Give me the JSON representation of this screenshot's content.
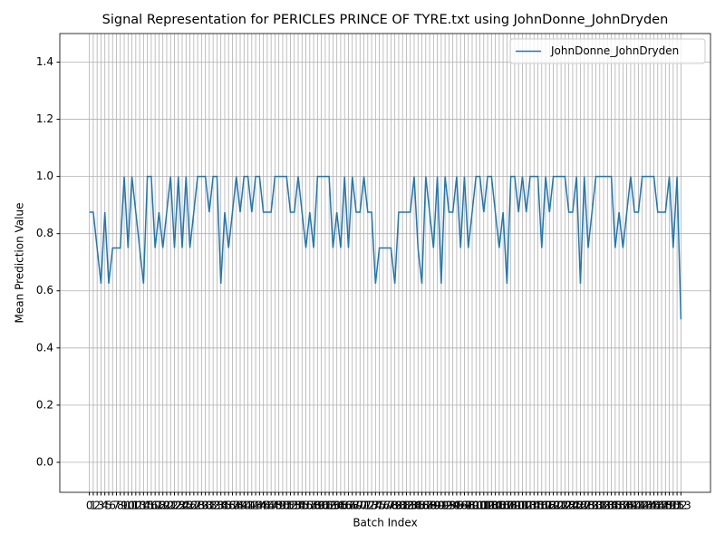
{
  "chart_data": {
    "type": "line",
    "title": "Signal Representation for PERICLES PRINCE OF TYRE.txt using JohnDonne_JohnDryden",
    "x_label": "Batch Index",
    "y_label": "Mean Prediction Value",
    "x": [
      0,
      1,
      2,
      3,
      4,
      5,
      6,
      7,
      8,
      9,
      10,
      11,
      12,
      13,
      14,
      15,
      16,
      17,
      18,
      19,
      20,
      21,
      22,
      23,
      24,
      25,
      26,
      27,
      28,
      29,
      30,
      31,
      32,
      33,
      34,
      35,
      36,
      37,
      38,
      39,
      40,
      41,
      42,
      43,
      44,
      45,
      46,
      47,
      48,
      49,
      50,
      51,
      52,
      53,
      54,
      55,
      56,
      57,
      58,
      59,
      60,
      61,
      62,
      63,
      64,
      65,
      66,
      67,
      68,
      69,
      70,
      71,
      72,
      73,
      74,
      75,
      76,
      77,
      78,
      79,
      80,
      81,
      82,
      83,
      84,
      85,
      86,
      87,
      88,
      89,
      90,
      91,
      92,
      93,
      94,
      95,
      96,
      97,
      98,
      99,
      100,
      101,
      102,
      103,
      104,
      105,
      106,
      107,
      108,
      109,
      110,
      111,
      112,
      113,
      114,
      115,
      116,
      117,
      118,
      119,
      120,
      121,
      122,
      123,
      124,
      125,
      126,
      127,
      128,
      129,
      130,
      131,
      132,
      133,
      134,
      135,
      136,
      137,
      138,
      139,
      140,
      141,
      142,
      143,
      144,
      145,
      146,
      147,
      148,
      149,
      150,
      151,
      152,
      153
    ],
    "series": [
      {
        "name": "JohnDonne_JohnDryden",
        "color": "#1f77b4",
        "values": [
          0.875,
          0.875,
          0.75,
          0.625,
          0.875,
          0.625,
          0.75,
          0.75,
          0.75,
          1,
          0.75,
          1,
          0.875,
          0.75,
          0.625,
          1,
          1,
          0.75,
          0.875,
          0.75,
          0.875,
          1,
          0.75,
          1,
          0.75,
          1,
          0.75,
          0.875,
          1,
          1,
          1,
          0.875,
          1,
          1,
          0.625,
          0.875,
          0.75,
          0.875,
          1,
          0.875,
          1,
          1,
          0.875,
          1,
          1,
          0.875,
          0.875,
          0.875,
          1,
          1,
          1,
          1,
          0.875,
          0.875,
          1,
          0.875,
          0.75,
          0.875,
          0.75,
          1,
          1,
          1,
          1,
          0.75,
          0.875,
          0.75,
          1,
          0.75,
          1,
          0.875,
          0.875,
          1,
          0.875,
          0.875,
          0.625,
          0.75,
          0.75,
          0.75,
          0.75,
          0.625,
          0.875,
          0.875,
          0.875,
          0.875,
          1,
          0.75,
          0.625,
          1,
          0.875,
          0.75,
          1,
          0.625,
          1,
          0.875,
          0.875,
          1,
          0.75,
          1,
          0.75,
          0.875,
          1,
          1,
          0.875,
          1,
          1,
          0.875,
          0.75,
          0.875,
          0.625,
          1,
          1,
          0.875,
          1,
          0.875,
          1,
          1,
          1,
          0.75,
          1,
          0.875,
          1,
          1,
          1,
          1,
          0.875,
          0.875,
          1,
          0.625,
          1,
          0.75,
          0.875,
          1,
          1,
          1,
          1,
          1,
          0.75,
          0.875,
          0.75,
          0.875,
          1,
          0.875,
          0.875,
          1,
          1,
          1,
          1,
          0.875,
          0.875,
          0.875,
          1,
          0.75,
          1,
          0.5
        ]
      }
    ],
    "xlim": [
      -7.65,
      160.65
    ],
    "xticks": [
      0,
      1,
      2,
      3,
      4,
      5,
      6,
      7,
      8,
      9,
      10,
      11,
      12,
      13,
      14,
      15,
      16,
      17,
      18,
      19,
      20,
      21,
      22,
      23,
      24,
      25,
      26,
      27,
      28,
      29,
      30,
      31,
      32,
      33,
      34,
      35,
      36,
      37,
      38,
      39,
      40,
      41,
      42,
      43,
      44,
      45,
      46,
      47,
      48,
      49,
      50,
      51,
      52,
      53,
      54,
      55,
      56,
      57,
      58,
      59,
      60,
      61,
      62,
      63,
      64,
      65,
      66,
      67,
      68,
      69,
      70,
      71,
      72,
      73,
      74,
      75,
      76,
      77,
      78,
      79,
      80,
      81,
      82,
      83,
      84,
      85,
      86,
      87,
      88,
      89,
      90,
      91,
      92,
      93,
      94,
      95,
      96,
      97,
      98,
      99,
      100,
      101,
      102,
      103,
      104,
      105,
      106,
      107,
      108,
      109,
      110,
      111,
      112,
      113,
      114,
      115,
      116,
      117,
      118,
      119,
      120,
      121,
      122,
      123,
      124,
      125,
      126,
      127,
      128,
      129,
      130,
      131,
      132,
      133,
      134,
      135,
      136,
      137,
      138,
      139,
      140,
      141,
      142,
      143,
      144,
      145,
      146,
      147,
      148,
      149,
      150,
      151,
      152,
      153
    ],
    "ylim": [
      -0.105,
      1.5
    ],
    "yticks": [
      {
        "value": 0,
        "label": "0.0"
      },
      {
        "value": 0.2,
        "label": "0.2"
      },
      {
        "value": 0.4,
        "label": "0.4"
      },
      {
        "value": 0.6,
        "label": "0.6"
      },
      {
        "value": 0.8,
        "label": "0.8"
      },
      {
        "value": 1,
        "label": "1.0"
      },
      {
        "value": 1.2,
        "label": "1.2"
      },
      {
        "value": 1.4,
        "label": "1.4"
      }
    ],
    "grid": true,
    "legend": "upper right"
  }
}
